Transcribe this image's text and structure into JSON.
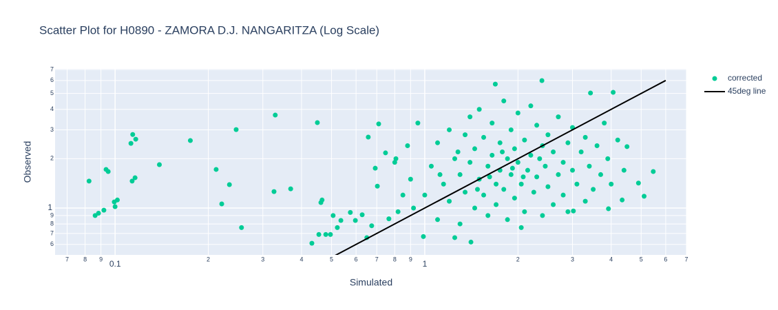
{
  "chart_data": {
    "type": "scatter",
    "title": "Scatter Plot for H0890 - ZAMORA D.J. NANGARITZA (Log Scale)",
    "x_label": "Simulated",
    "y_label": "Observed",
    "log_x": true,
    "log_y": true,
    "grid": true,
    "legend": "outside-right",
    "xlim": [
      0.064,
      7
    ],
    "ylim": [
      0.518,
      7.06
    ],
    "xticks": [
      {
        "value": 0.07,
        "label": "7"
      },
      {
        "value": 0.08,
        "label": "8"
      },
      {
        "value": 0.09,
        "label": "9"
      },
      0.1,
      {
        "value": 0.2,
        "label": "2"
      },
      {
        "value": 0.3,
        "label": "3"
      },
      {
        "value": 0.4,
        "label": "4"
      },
      {
        "value": 0.5,
        "label": "5"
      },
      {
        "value": 0.6,
        "label": "6"
      },
      {
        "value": 0.7,
        "label": "7"
      },
      {
        "value": 0.8,
        "label": "8"
      },
      {
        "value": 0.9,
        "label": "9"
      },
      1,
      2,
      3,
      4,
      5,
      6,
      7
    ],
    "yticks": [
      {
        "value": 0.6,
        "label": "6"
      },
      {
        "value": 0.7,
        "label": "7"
      },
      {
        "value": 0.8,
        "label": "8"
      },
      {
        "value": 0.9,
        "label": "9"
      },
      1,
      2,
      3,
      4,
      5,
      6,
      7
    ],
    "series": [
      {
        "name": "corrected",
        "color": "#00cc96",
        "mode": "markers",
        "x": [
          0.0824,
          0.0862,
          0.0884,
          0.092,
          0.0935,
          0.095,
          0.0994,
          0.1,
          0.1017,
          0.1125,
          0.114,
          0.1166,
          0.1135,
          0.116,
          0.139,
          0.175,
          0.212,
          0.221,
          0.234,
          0.246,
          0.256,
          0.326,
          0.329,
          0.369,
          0.432,
          0.45,
          0.462,
          0.466,
          0.455,
          0.479,
          0.506,
          0.496,
          0.522,
          0.536,
          0.575,
          0.597,
          0.628,
          0.65,
          0.657,
          0.71,
          0.674,
          0.692,
          0.703,
          0.747,
          0.766,
          0.807,
          1.41,
          1.69,
          2.39,
          5.47,
          5.11,
          4.9,
          4.5,
          4.34,
          4.06,
          3.43,
          3.92,
          3.02,
          2.05,
          1.25,
          0.99,
          1.0,
          1.05,
          1.1,
          1.1,
          1.15,
          1.2,
          1.2,
          1.25,
          1.3,
          1.3,
          1.35,
          1.35,
          1.4,
          1.4,
          1.45,
          1.45,
          1.5,
          1.5,
          1.55,
          1.55,
          1.6,
          1.6,
          1.65,
          1.65,
          1.7,
          1.7,
          1.75,
          1.75,
          1.8,
          1.8,
          1.85,
          1.85,
          1.9,
          1.9,
          1.95,
          1.95,
          2.0,
          2.0,
          2.05,
          2.1,
          2.1,
          2.15,
          2.2,
          2.2,
          2.25,
          2.3,
          2.3,
          2.35,
          2.4,
          2.45,
          2.5,
          2.5,
          2.6,
          2.6,
          2.7,
          2.7,
          2.8,
          2.8,
          2.9,
          2.9,
          3.0,
          3.0,
          3.1,
          3.2,
          3.3,
          3.3,
          3.4,
          3.5,
          3.6,
          3.7,
          3.8,
          3.9,
          4.0,
          4.2,
          4.4,
          0.9,
          0.88,
          0.92,
          0.85,
          0.95,
          0.8,
          0.82,
          1.12,
          1.28,
          1.48,
          1.62,
          1.78,
          1.92,
          2.08,
          2.4
        ],
        "y": [
          1.46,
          0.9,
          0.93,
          0.97,
          1.72,
          1.67,
          1.09,
          1.02,
          1.12,
          2.48,
          2.81,
          2.63,
          1.46,
          1.53,
          1.84,
          2.58,
          1.72,
          1.06,
          1.39,
          3.01,
          0.76,
          1.26,
          3.69,
          1.31,
          0.61,
          3.32,
          1.08,
          1.12,
          0.69,
          0.69,
          0.9,
          0.69,
          0.76,
          0.84,
          0.94,
          0.84,
          0.91,
          0.66,
          2.71,
          3.26,
          0.78,
          1.75,
          1.36,
          2.17,
          0.86,
          2.0,
          0.62,
          5.7,
          5.99,
          1.67,
          1.18,
          1.42,
          2.37,
          1.12,
          5.08,
          5.03,
          0.99,
          0.96,
          0.76,
          0.66,
          0.67,
          1.2,
          1.8,
          2.5,
          0.85,
          1.4,
          3.0,
          1.1,
          2.0,
          1.6,
          0.8,
          2.8,
          1.25,
          3.6,
          1.9,
          1.0,
          2.3,
          1.5,
          4.0,
          1.2,
          2.7,
          1.8,
          0.9,
          2.1,
          3.3,
          1.4,
          1.05,
          2.5,
          1.7,
          4.5,
          1.3,
          2.0,
          0.85,
          1.6,
          3.0,
          1.15,
          2.3,
          1.9,
          3.8,
          1.4,
          2.6,
          0.95,
          1.7,
          2.1,
          4.2,
          1.25,
          1.55,
          3.2,
          2.0,
          0.9,
          1.8,
          2.8,
          1.35,
          2.2,
          1.05,
          1.6,
          3.6,
          1.9,
          1.2,
          2.5,
          0.95,
          1.7,
          3.1,
          1.4,
          2.2,
          1.1,
          2.7,
          1.8,
          1.3,
          2.4,
          1.6,
          3.3,
          2.0,
          1.4,
          2.6,
          1.7,
          1.5,
          2.4,
          1.0,
          1.2,
          3.3,
          1.9,
          0.95,
          1.6,
          2.2,
          1.3,
          1.55,
          2.2,
          1.75,
          1.55,
          2.4
        ]
      },
      {
        "name": "45deg line",
        "color": "#000000",
        "mode": "lines",
        "x": [
          0.5,
          6
        ],
        "y": [
          0.5,
          6
        ]
      }
    ]
  }
}
